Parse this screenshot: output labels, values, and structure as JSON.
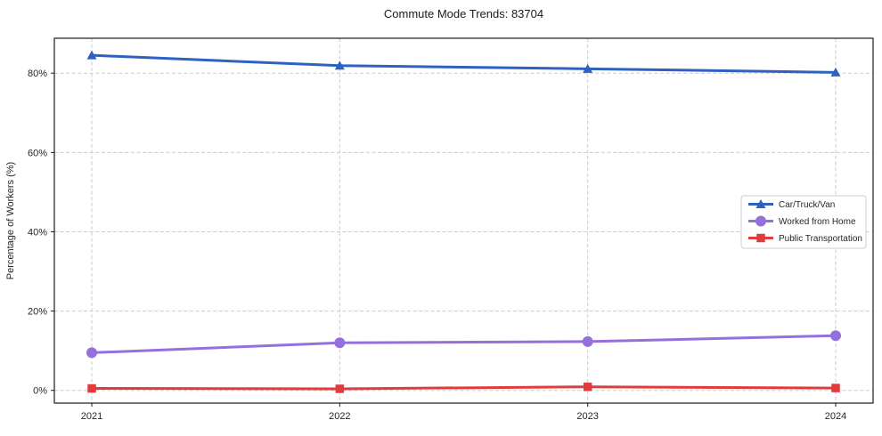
{
  "page": {
    "title": "Commute Mode Trends: 83704"
  },
  "chart_data": {
    "type": "line",
    "title": "Commute Mode Trends: 83704",
    "xlabel": "",
    "ylabel": "Percentage of Workers (%)",
    "x": [
      2021,
      2022,
      2023,
      2024
    ],
    "series": [
      {
        "name": "Car/Truck/Van",
        "color": "#2d62c1",
        "marker": "triangle",
        "values": [
          84.5,
          81.9,
          81.1,
          80.2
        ]
      },
      {
        "name": "Worked from Home",
        "color": "#9370db",
        "marker": "circle",
        "values": [
          9.5,
          12.0,
          12.3,
          13.8
        ]
      },
      {
        "name": "Public Transportation",
        "color": "#e23b3c",
        "marker": "square",
        "values": [
          0.5,
          0.4,
          0.9,
          0.6
        ]
      }
    ],
    "yticks": [
      0,
      20,
      40,
      60,
      80
    ],
    "ytick_format": "{v}%",
    "ylim": [
      -3.2,
      88.8
    ],
    "grid": true,
    "legend_position": "right-middle",
    "legend_entries": [
      "Car/Truck/Van",
      "Worked from Home",
      "Public Transportation"
    ]
  }
}
